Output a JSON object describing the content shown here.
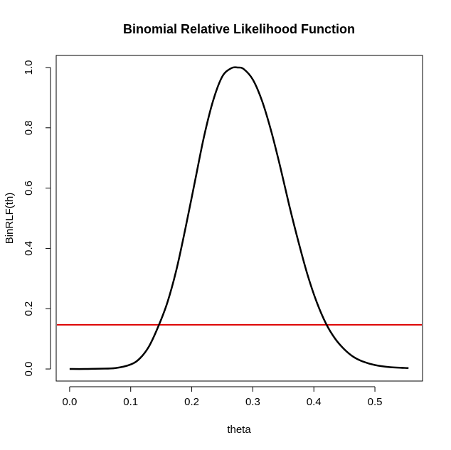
{
  "chart_data": {
    "type": "line",
    "title": "Binomial Relative Likelihood Function",
    "xlabel": "theta",
    "ylabel": "BinRLF(th)",
    "xlim": [
      -0.022,
      0.578
    ],
    "ylim": [
      -0.04,
      1.04
    ],
    "xticks": [
      0.0,
      0.1,
      0.2,
      0.3,
      0.4,
      0.5
    ],
    "xtick_labels": [
      "0.0",
      "0.1",
      "0.2",
      "0.3",
      "0.4",
      "0.5"
    ],
    "yticks": [
      0.0,
      0.2,
      0.4,
      0.6,
      0.8,
      1.0
    ],
    "ytick_labels": [
      "0.0",
      "0.2",
      "0.4",
      "0.6",
      "0.8",
      "1.0"
    ],
    "grid": false,
    "legend": "none",
    "series": [
      {
        "color": "#000000",
        "x": [
          0.0,
          0.025,
          0.05,
          0.075,
          0.1,
          0.115,
          0.13,
          0.145,
          0.16,
          0.175,
          0.19,
          0.205,
          0.22,
          0.235,
          0.25,
          0.265,
          0.275,
          0.285,
          0.3,
          0.315,
          0.33,
          0.345,
          0.36,
          0.375,
          0.39,
          0.405,
          0.42,
          0.435,
          0.45,
          0.465,
          0.48,
          0.5,
          0.525,
          0.555
        ],
        "y": [
          0.0,
          0.0,
          0.001,
          0.003,
          0.015,
          0.035,
          0.075,
          0.14,
          0.22,
          0.33,
          0.47,
          0.62,
          0.77,
          0.89,
          0.97,
          0.998,
          1.0,
          0.995,
          0.96,
          0.89,
          0.79,
          0.67,
          0.54,
          0.42,
          0.31,
          0.22,
          0.15,
          0.1,
          0.065,
          0.04,
          0.025,
          0.013,
          0.006,
          0.003
        ]
      }
    ],
    "hlines": [
      {
        "y": 0.1465,
        "color": "#dd0000"
      }
    ]
  }
}
